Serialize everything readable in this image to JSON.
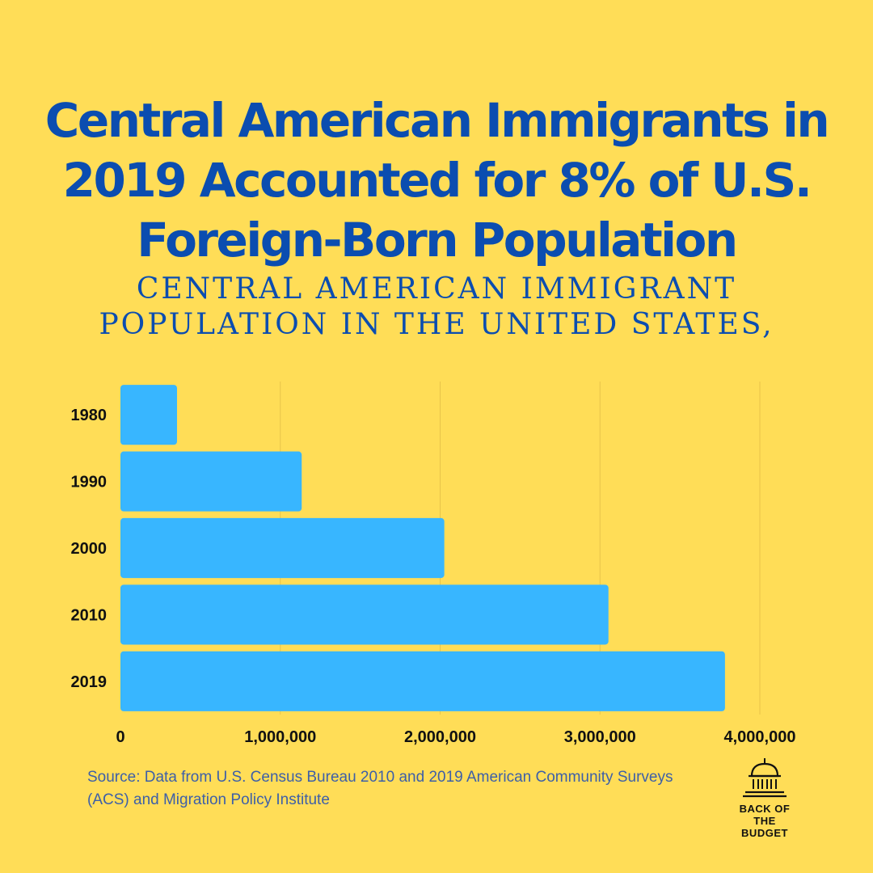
{
  "title": "Central American Immigrants in 2019 Accounted for 8% of  U.S. Foreign-Born Population",
  "subtitle": "CENTRAL AMERICAN IMMIGRANT POPULATION IN THE UNITED STATES,",
  "source": "Source: Data from U.S. Census Bureau 2010 and 2019 American Community Surveys (ACS) and Migration Policy Institute",
  "logo": {
    "line1": "Back of the",
    "line2": "Budget",
    "icon": "capitol-dome-icon"
  },
  "colors": {
    "background": "#FFDD57",
    "title": "#0B4DB0",
    "bar": "#38B6FF",
    "grid": "#E8C34A"
  },
  "chart_data": {
    "type": "bar",
    "orientation": "horizontal",
    "title": "CENTRAL AMERICAN IMMIGRANT POPULATION IN THE UNITED STATES,",
    "categories": [
      "1980",
      "1990",
      "2000",
      "2010",
      "2019"
    ],
    "values": [
      354000,
      1134000,
      2026000,
      3053000,
      3782000
    ],
    "xlim": [
      0,
      4000000
    ],
    "xticks": [
      0,
      1000000,
      2000000,
      3000000,
      4000000
    ],
    "xtick_labels": [
      "0",
      "1,000,000",
      "2,000,000",
      "3,000,000",
      "4,000,000"
    ],
    "xlabel": "",
    "ylabel": "",
    "grid": true,
    "legend": "none"
  }
}
